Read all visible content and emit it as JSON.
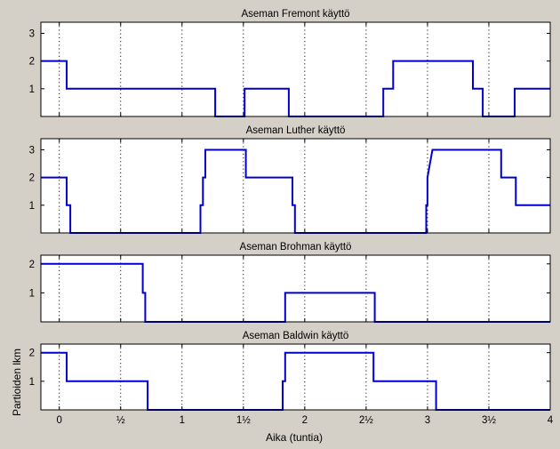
{
  "chart_data": {
    "type": "line",
    "xlabel": "Aika (tuntia)",
    "ylabel": "Partioiden lkm",
    "xlim": [
      -0.15,
      4
    ],
    "x_ticks": [
      0,
      0.5,
      1,
      1.5,
      2,
      2.5,
      3,
      3.5,
      4
    ],
    "x_tick_labels": [
      "0",
      "½",
      "1",
      "1½",
      "2",
      "2½",
      "3",
      "3½",
      "4"
    ],
    "grid": "vertical-dotted",
    "series_color": "#0000cc",
    "subplots": [
      {
        "title": "Aseman Fremont käyttö",
        "ylim": [
          0,
          3.4
        ],
        "y_ticks": [
          1,
          2,
          3
        ],
        "x": [
          -0.15,
          0.06,
          0.06,
          1.27,
          1.27,
          1.51,
          1.51,
          1.87,
          1.87,
          2.64,
          2.64,
          2.72,
          2.72,
          3.37,
          3.37,
          3.45,
          3.45,
          3.71,
          3.71,
          4.0
        ],
        "y": [
          2,
          2,
          1,
          1,
          0,
          0,
          1,
          1,
          0,
          0,
          1,
          1,
          2,
          2,
          1,
          1,
          0,
          0,
          1,
          1
        ]
      },
      {
        "title": "Aseman Luther käyttö",
        "ylim": [
          0,
          3.4
        ],
        "y_ticks": [
          1,
          2,
          3
        ],
        "x": [
          -0.15,
          0.06,
          0.06,
          0.09,
          0.09,
          1.15,
          1.15,
          1.17,
          1.17,
          1.19,
          1.19,
          1.52,
          1.52,
          1.9,
          1.9,
          1.92,
          1.92,
          2.99,
          2.99,
          3.0,
          3.0,
          3.04,
          3.04,
          3.6,
          3.6,
          3.72,
          3.72,
          4.0
        ],
        "y": [
          2,
          2,
          1,
          1,
          0,
          0,
          1,
          1,
          2,
          2,
          3,
          3,
          2,
          2,
          1,
          1,
          0,
          0,
          1,
          1,
          2,
          3,
          3,
          3,
          2,
          2,
          1,
          1
        ]
      },
      {
        "title": "Aseman Brohman käyttö",
        "ylim": [
          0,
          2.3
        ],
        "y_ticks": [
          1,
          2
        ],
        "x": [
          -0.15,
          0.68,
          0.68,
          0.7,
          0.7,
          1.84,
          1.84,
          2.57,
          2.57,
          4.0
        ],
        "y": [
          2,
          2,
          1,
          1,
          0,
          0,
          1,
          1,
          0,
          0
        ]
      },
      {
        "title": "Aseman Baldwin käyttö",
        "ylim": [
          0,
          2.3
        ],
        "y_ticks": [
          1,
          2
        ],
        "x": [
          -0.15,
          0.06,
          0.06,
          0.72,
          0.72,
          1.82,
          1.82,
          1.84,
          1.84,
          2.56,
          2.56,
          3.07,
          3.07,
          4.0
        ],
        "y": [
          2,
          2,
          1,
          1,
          0,
          0,
          1,
          1,
          2,
          2,
          1,
          1,
          0,
          0
        ]
      }
    ]
  }
}
